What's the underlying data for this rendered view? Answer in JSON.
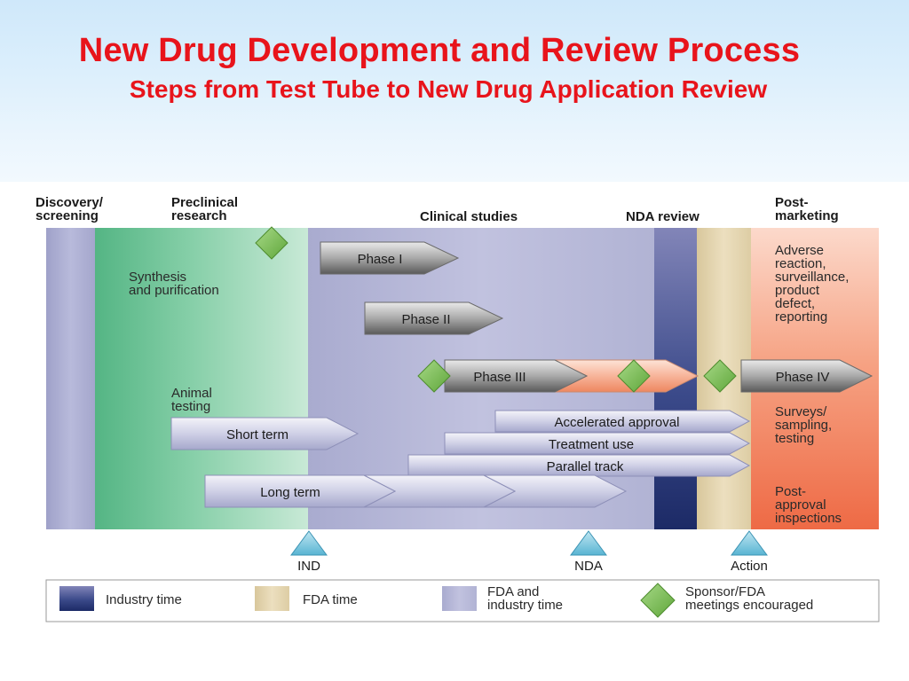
{
  "slide": {
    "title": "New Drug Development and Review Process",
    "subtitle": "Steps from Test Tube to New Drug Application Review"
  },
  "stages": {
    "discovery": "Discovery/\nscreening",
    "preclinical": "Preclinical\nresearch",
    "clinical": "Clinical studies",
    "nda_review": "NDA review",
    "postmarketing": "Post-\nmarketing"
  },
  "labels": {
    "synthesis": "Synthesis\nand purification",
    "animal_testing": "Animal\ntesting",
    "adverse": "Adverse\nreaction,\nsurveillance,\nproduct\ndefect,\nreporting",
    "surveys": "Surveys/\nsampling,\ntesting",
    "postapproval": "Post-\napproval\ninspections"
  },
  "phases": {
    "phase1": "Phase I",
    "phase2": "Phase II",
    "phase3": "Phase III",
    "phase4": "Phase IV"
  },
  "tracks": {
    "accelerated": "Accelerated approval",
    "treatment": "Treatment use",
    "parallel": "Parallel track",
    "short_term": "Short term",
    "long_term": "Long term"
  },
  "milestones": {
    "ind": "IND",
    "nda": "NDA",
    "action": "Action"
  },
  "legend": {
    "industry_time": "Industry time",
    "fda_time": "FDA time",
    "fda_industry_time": "FDA and\nindustry time",
    "meetings": "Sponsor/FDA\nmeetings encouraged"
  },
  "colors": {
    "title_red": "#e8141b",
    "industry_blue": "#26346e",
    "fda_tan": "#e3d4ae",
    "fda_industry_lavender": "#b6b8d8",
    "preclinical_green": "#72c49a",
    "postmarketing_salmon": "#f07a58",
    "meeting_green": "#7bc043"
  }
}
